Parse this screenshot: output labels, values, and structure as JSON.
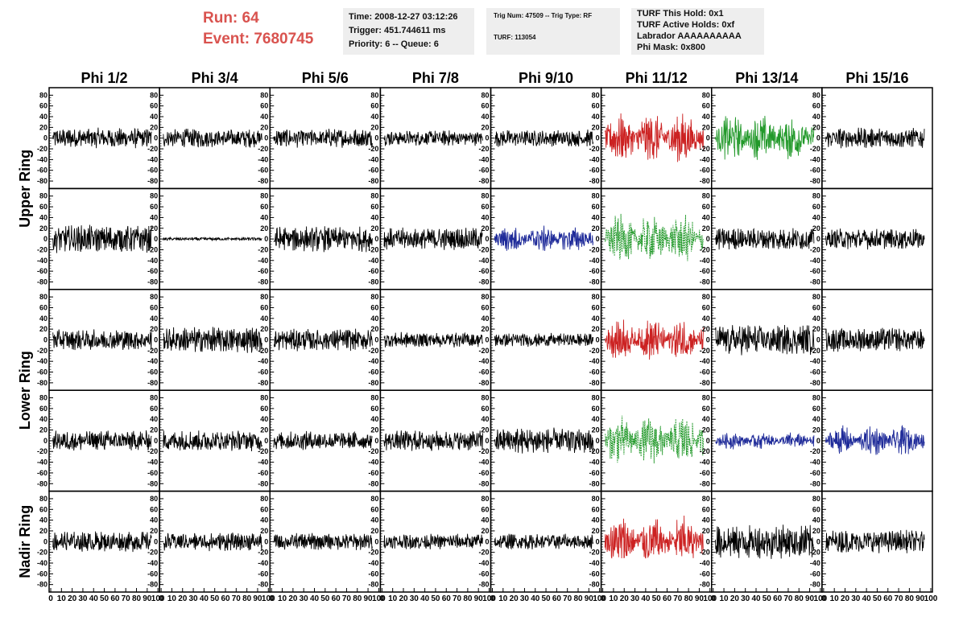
{
  "header": {
    "run_label": "Run:    64",
    "event_label": "Event: 7680745",
    "time": "Time: 2008-12-27 03:12:26",
    "trigger": "Trigger: 451.744611 ms",
    "priority": "Priority: 6 -- Queue: 6",
    "trig_num": "Trig Num: 47509 -- Trig Type: RF",
    "turf": "TURF: 113054",
    "turf_hold": "TURF This Hold: 0x1",
    "turf_active": "TURF Active Holds: 0xf",
    "labrador": "Labrador AAAAAAAAAA",
    "phi_mask": "Phi Mask: 0x800"
  },
  "chart_data": {
    "type": "line",
    "layout": "grid",
    "columns": [
      "Phi 1/2",
      "Phi 3/4",
      "Phi 5/6",
      "Phi 7/8",
      "Phi 9/10",
      "Phi 11/12",
      "Phi 13/14",
      "Phi 15/16"
    ],
    "ring_labels": [
      "Upper Ring",
      "Lower Ring",
      "Nadir Ring"
    ],
    "rows": 5,
    "ylim": [
      -85,
      85
    ],
    "yticks": [
      "80",
      "60",
      "40",
      "20",
      "0",
      "-20",
      "-40",
      "-60",
      "-80"
    ],
    "xlim": [
      0,
      100
    ],
    "xticks": [
      "0",
      "10",
      "20",
      "30",
      "40",
      "50",
      "60",
      "70",
      "80",
      "90",
      "100"
    ],
    "colors": {
      "normal": "#000000",
      "red": "#cc2222",
      "green": "#22992a",
      "blue": "#1e2a99"
    },
    "panels": [
      [
        "normal",
        "normal",
        "normal",
        "normal",
        "normal",
        "red",
        "green",
        "normal"
      ],
      [
        "normal",
        "normal",
        "normal",
        "normal",
        "blue",
        "green-dashed",
        "normal",
        "normal"
      ],
      [
        "normal",
        "normal",
        "normal",
        "normal",
        "normal",
        "red",
        "normal",
        "normal"
      ],
      [
        "normal",
        "normal",
        "normal",
        "normal",
        "normal",
        "green-dashed",
        "blue",
        "blue"
      ],
      [
        "normal",
        "normal",
        "normal",
        "normal",
        "normal",
        "red",
        "normal",
        "normal"
      ]
    ],
    "amplitudes": [
      [
        12,
        11,
        11,
        9,
        10,
        30,
        28,
        12
      ],
      [
        16,
        2,
        15,
        13,
        16,
        30,
        13,
        12
      ],
      [
        12,
        15,
        13,
        9,
        8,
        25,
        18,
        14
      ],
      [
        12,
        12,
        11,
        12,
        15,
        30,
        10,
        18
      ],
      [
        12,
        11,
        10,
        9,
        9,
        30,
        20,
        14
      ]
    ]
  }
}
